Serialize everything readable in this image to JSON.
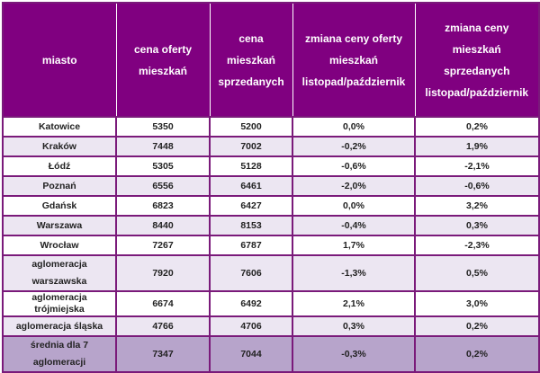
{
  "table": {
    "headers": [
      "miasto",
      "cena oferty mieszkań",
      "cena mieszkań sprzedanych",
      "zmiana ceny oferty mieszkań listopad/październik",
      "zmiana ceny mieszkań sprzedanych listopad/październik"
    ],
    "rows": [
      [
        "Katowice",
        "5350",
        "5200",
        "0,0%",
        "0,2%"
      ],
      [
        "Kraków",
        "7448",
        "7002",
        "-0,2%",
        "1,9%"
      ],
      [
        "Łódź",
        "5305",
        "5128",
        "-0,6%",
        "-2,1%"
      ],
      [
        "Poznań",
        "6556",
        "6461",
        "-2,0%",
        "-0,6%"
      ],
      [
        "Gdańsk",
        "6823",
        "6427",
        "0,0%",
        "3,2%"
      ],
      [
        "Warszawa",
        "8440",
        "8153",
        "-0,4%",
        "0,3%"
      ],
      [
        "Wrocław",
        "7267",
        "6787",
        "1,7%",
        "-2,3%"
      ],
      [
        "aglomeracja warszawska",
        "7920",
        "7606",
        "-1,3%",
        "0,5%"
      ],
      [
        "aglomeracja trójmiejska",
        "6674",
        "6492",
        "2,1%",
        "3,0%"
      ],
      [
        "aglomeracja śląska",
        "4766",
        "4706",
        "0,3%",
        "0,2%"
      ],
      [
        "średnia dla 7 aglomeracji",
        "7347",
        "7044",
        "-0,3%",
        "0,2%"
      ]
    ]
  }
}
